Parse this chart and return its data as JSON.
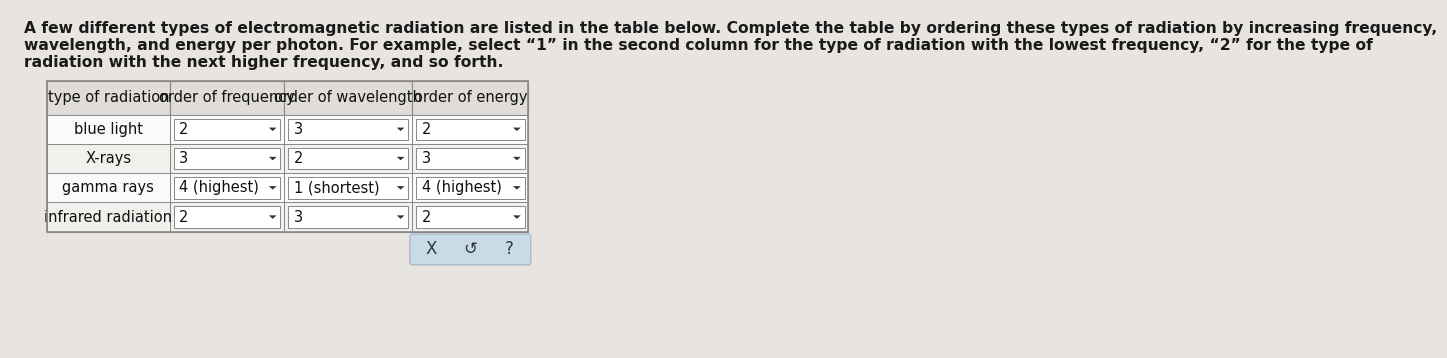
{
  "title_line1": "A few different types of electromagnetic radiation are listed in the table below. Complete the table by ordering these types of radiation by increasing frequency,",
  "title_line2": "wavelength, and energy per photon. For example, select “1” in the second column for the type of radiation with the lowest frequency, “2” for the type of",
  "title_line3": "radiation with the next higher frequency, and so forth.",
  "bg_color": "#e8e5e0",
  "table_outer_bg": "#f0ede8",
  "header_bg": "#dbd8d3",
  "cell_bg_white": "#ffffff",
  "cell_bg_light": "#f5f3f0",
  "table_border": "#999999",
  "col_headers": [
    "type of radiation",
    "order of frequency",
    "order of wavelength",
    "order of energy"
  ],
  "rows": [
    [
      "blue light",
      "2",
      "3",
      "2"
    ],
    [
      "X-rays",
      "3",
      "2",
      "3"
    ],
    [
      "gamma rays",
      "4 (highest)",
      "1 (shortest)",
      "4 (highest)"
    ],
    [
      "infrared radiation",
      "2",
      "3",
      "2"
    ]
  ],
  "bottom_buttons": [
    "X",
    "↺",
    "?"
  ],
  "title_fontsize": 11.2,
  "header_fontsize": 10.5,
  "cell_fontsize": 10.5
}
